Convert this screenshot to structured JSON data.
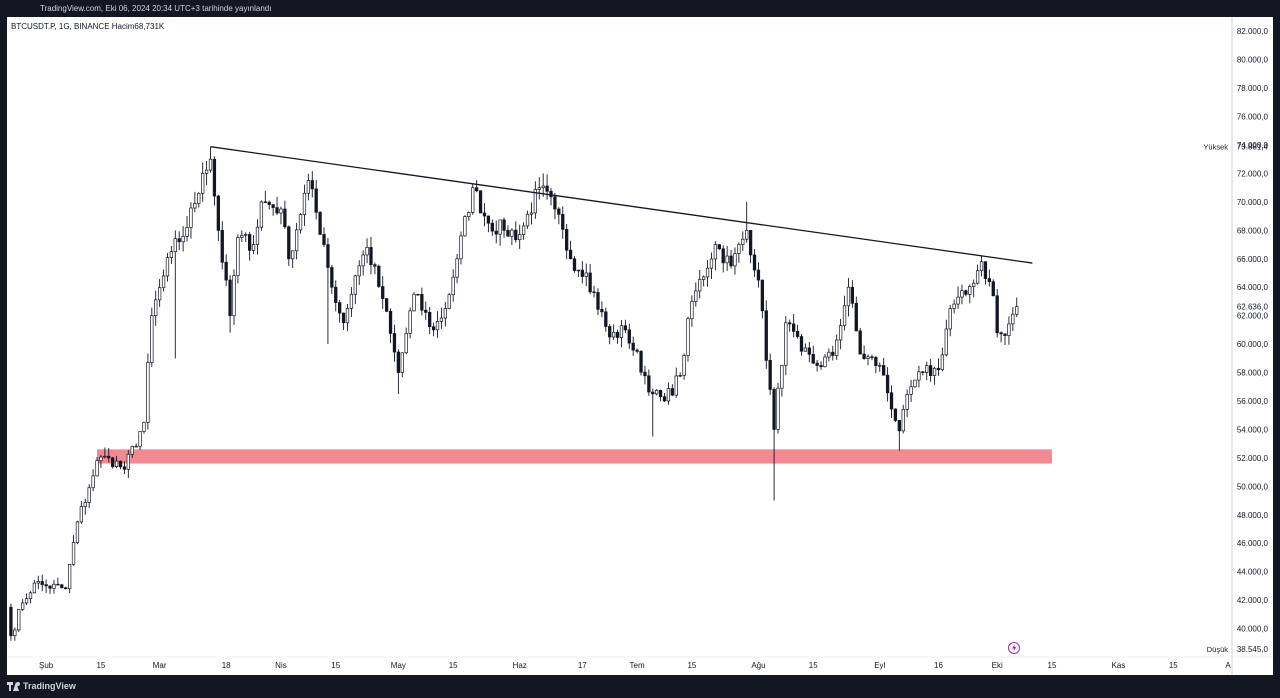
{
  "header": {
    "published": "TradingView.com, Eki 06, 2024 20:34 UTC+3 tarihinde yayınlandı"
  },
  "symbol": {
    "line": "BTCUSDT.P, 1G, BINANCE  Hacim68,731K"
  },
  "footer": {
    "brand": "TradingView"
  },
  "colors": {
    "candle_up": "#131722",
    "candle_down": "#131722",
    "zone": "#f48a91",
    "axis_text": "#131722",
    "lightning": "#9c27b0"
  },
  "icons": [
    "lightning-icon",
    "tradingview-logo-icon"
  ],
  "chart_data": {
    "type": "candlestick",
    "title": "",
    "xlabel": "",
    "ylabel": "",
    "ylim": [
      38000,
      83000
    ],
    "grid": false,
    "x_range": [
      "2024-01-22",
      "2024-11-30"
    ],
    "y_ticks": [
      "82.000,0",
      "80.000,0",
      "78.000,0",
      "76.000,0",
      "74.000,0",
      "72.000,0",
      "70.000,0",
      "68.000,0",
      "66.000,0",
      "64.000,0",
      "62.000,0",
      "60.000,0",
      "58.000,0",
      "56.000,0",
      "54.000,0",
      "52.000,0",
      "50.000,0",
      "48.000,0",
      "46.000,0",
      "44.000,0",
      "42.000,0",
      "40.000,0"
    ],
    "y_tick_values": [
      82000,
      80000,
      78000,
      76000,
      74000,
      72000,
      70000,
      68000,
      66000,
      64000,
      62000,
      60000,
      58000,
      56000,
      54000,
      52000,
      50000,
      48000,
      46000,
      44000,
      42000,
      40000
    ],
    "x_ticks": [
      {
        "label": "Şub",
        "date": "2024-02-01"
      },
      {
        "label": "15",
        "date": "2024-02-15"
      },
      {
        "label": "Mar",
        "date": "2024-03-01"
      },
      {
        "label": "18",
        "date": "2024-03-18"
      },
      {
        "label": "Nis",
        "date": "2024-04-01"
      },
      {
        "label": "15",
        "date": "2024-04-15"
      },
      {
        "label": "May",
        "date": "2024-05-01"
      },
      {
        "label": "15",
        "date": "2024-05-15"
      },
      {
        "label": "Haz",
        "date": "2024-06-01"
      },
      {
        "label": "17",
        "date": "2024-06-17"
      },
      {
        "label": "Tem",
        "date": "2024-07-01"
      },
      {
        "label": "15",
        "date": "2024-07-15"
      },
      {
        "label": "Ağu",
        "date": "2024-08-01"
      },
      {
        "label": "15",
        "date": "2024-08-15"
      },
      {
        "label": "Eyl",
        "date": "2024-09-01"
      },
      {
        "label": "16",
        "date": "2024-09-16"
      },
      {
        "label": "Eki",
        "date": "2024-10-01"
      },
      {
        "label": "15",
        "date": "2024-10-15"
      },
      {
        "label": "Kas",
        "date": "2024-11-01"
      },
      {
        "label": "15",
        "date": "2024-11-15"
      },
      {
        "label": "A",
        "date": "2024-11-29"
      }
    ],
    "markers": [
      {
        "label": "Yüksek",
        "value": "73.881,4",
        "price": 73881.4
      },
      {
        "label": "",
        "value": "62.636,0",
        "price": 62636
      },
      {
        "label": "Düşük",
        "value": "38.545,0",
        "price": 38545
      }
    ],
    "trendline": {
      "start": {
        "date": "2024-03-14",
        "price": 73881
      },
      "end": {
        "date": "2024-10-10",
        "price": 65700
      }
    },
    "zone": {
      "start": "2024-02-14",
      "end": "2024-10-15",
      "top": 52600,
      "bottom": 51600
    },
    "anchors": [
      [
        "2024-01-22",
        41500
      ],
      [
        "2024-01-23",
        39500
      ],
      [
        "2024-01-26",
        41800
      ],
      [
        "2024-01-29",
        43200
      ],
      [
        "2024-02-01",
        43000
      ],
      [
        "2024-02-06",
        42800
      ],
      [
        "2024-02-09",
        47500
      ],
      [
        "2024-02-12",
        49900
      ],
      [
        "2024-02-14",
        51800
      ],
      [
        "2024-02-17",
        52000
      ],
      [
        "2024-02-21",
        51200
      ],
      [
        "2024-02-26",
        54500
      ],
      [
        "2024-02-28",
        62000
      ],
      [
        "2024-03-04",
        66500
      ],
      [
        "2024-03-08",
        68200
      ],
      [
        "2024-03-12",
        72000
      ],
      [
        "2024-03-14",
        73000
      ],
      [
        "2024-03-16",
        68000
      ],
      [
        "2024-03-19",
        62000
      ],
      [
        "2024-03-21",
        67500
      ],
      [
        "2024-03-25",
        67000
      ],
      [
        "2024-03-27",
        70000
      ],
      [
        "2024-04-01",
        69500
      ],
      [
        "2024-04-03",
        66000
      ],
      [
        "2024-04-08",
        71500
      ],
      [
        "2024-04-12",
        67000
      ],
      [
        "2024-04-14",
        64000
      ],
      [
        "2024-04-17",
        61500
      ],
      [
        "2024-04-20",
        64800
      ],
      [
        "2024-04-23",
        66800
      ],
      [
        "2024-04-27",
        63200
      ],
      [
        "2024-05-01",
        58000
      ],
      [
        "2024-05-05",
        63500
      ],
      [
        "2024-05-10",
        61000
      ],
      [
        "2024-05-13",
        62500
      ],
      [
        "2024-05-16",
        66000
      ],
      [
        "2024-05-20",
        71000
      ],
      [
        "2024-05-24",
        68500
      ],
      [
        "2024-05-28",
        68000
      ],
      [
        "2024-06-01",
        67700
      ],
      [
        "2024-06-06",
        71000
      ],
      [
        "2024-06-10",
        69500
      ],
      [
        "2024-06-14",
        66000
      ],
      [
        "2024-06-18",
        65000
      ],
      [
        "2024-06-24",
        60500
      ],
      [
        "2024-06-28",
        61000
      ],
      [
        "2024-07-05",
        56500
      ],
      [
        "2024-07-08",
        56000
      ],
      [
        "2024-07-12",
        57800
      ],
      [
        "2024-07-15",
        63000
      ],
      [
        "2024-07-21",
        67000
      ],
      [
        "2024-07-25",
        65500
      ],
      [
        "2024-07-29",
        68000
      ],
      [
        "2024-08-01",
        64500
      ],
      [
        "2024-08-05",
        54000
      ],
      [
        "2024-08-08",
        61500
      ],
      [
        "2024-08-12",
        59500
      ],
      [
        "2024-08-16",
        58500
      ],
      [
        "2024-08-20",
        59200
      ],
      [
        "2024-08-24",
        64000
      ],
      [
        "2024-08-27",
        59300
      ],
      [
        "2024-09-01",
        58500
      ],
      [
        "2024-09-06",
        53900
      ],
      [
        "2024-09-09",
        57000
      ],
      [
        "2024-09-12",
        58000
      ],
      [
        "2024-09-16",
        58200
      ],
      [
        "2024-09-19",
        62500
      ],
      [
        "2024-09-23",
        63500
      ],
      [
        "2024-09-27",
        65800
      ],
      [
        "2024-09-30",
        63400
      ],
      [
        "2024-10-01",
        60800
      ],
      [
        "2024-10-03",
        60600
      ],
      [
        "2024-10-05",
        62100
      ],
      [
        "2024-10-06",
        62636
      ]
    ],
    "wicks": [
      {
        "date": "2024-03-05",
        "low": 59000
      },
      {
        "date": "2024-03-19",
        "low": 60800
      },
      {
        "date": "2024-04-13",
        "low": 60000
      },
      {
        "date": "2024-05-01",
        "low": 56500
      },
      {
        "date": "2024-07-05",
        "low": 53500
      },
      {
        "date": "2024-08-05",
        "low": 49000
      },
      {
        "date": "2024-09-06",
        "low": 52500
      },
      {
        "date": "2024-03-14",
        "high": 73881
      },
      {
        "date": "2024-06-07",
        "high": 72000
      },
      {
        "date": "2024-07-29",
        "high": 70000
      }
    ]
  }
}
